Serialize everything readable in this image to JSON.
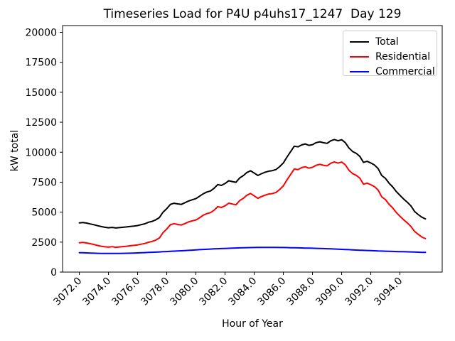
{
  "chart_data": {
    "type": "line",
    "title": "Timeseries Load for P4U p4uhs17_1247  Day 129",
    "xlabel": "Hour of Year",
    "ylabel": "kW total",
    "xlim": [
      3070.85,
      3096.9
    ],
    "ylim": [
      0,
      20563
    ],
    "grid": false,
    "legend_position": "upper right",
    "xticks": {
      "values": [
        3072,
        3074,
        3076,
        3078,
        3080,
        3082,
        3084,
        3086,
        3088,
        3090,
        3092,
        3094
      ],
      "labels": [
        "3072.0",
        "3074.0",
        "3076.0",
        "3078.0",
        "3080.0",
        "3082.0",
        "3084.0",
        "3086.0",
        "3088.0",
        "3090.0",
        "3092.0",
        "3094.0"
      ]
    },
    "yticks": {
      "values": [
        0,
        2500,
        5000,
        7500,
        10000,
        12500,
        15000,
        17500,
        20000
      ],
      "labels": [
        "0",
        "2500",
        "5000",
        "7500",
        "10000",
        "12500",
        "15000",
        "17500",
        "20000"
      ]
    },
    "x": [
      3072.0,
      3072.25,
      3072.5,
      3072.75,
      3073.0,
      3073.25,
      3073.5,
      3073.75,
      3074.0,
      3074.25,
      3074.5,
      3074.75,
      3075.0,
      3075.25,
      3075.5,
      3075.75,
      3076.0,
      3076.25,
      3076.5,
      3076.75,
      3077.0,
      3077.25,
      3077.5,
      3077.75,
      3078.0,
      3078.25,
      3078.5,
      3078.75,
      3079.0,
      3079.25,
      3079.5,
      3079.75,
      3080.0,
      3080.25,
      3080.5,
      3080.75,
      3081.0,
      3081.25,
      3081.5,
      3081.75,
      3082.0,
      3082.25,
      3082.5,
      3082.75,
      3083.0,
      3083.25,
      3083.5,
      3083.75,
      3084.0,
      3084.25,
      3084.5,
      3084.75,
      3085.0,
      3085.25,
      3085.5,
      3085.75,
      3086.0,
      3086.25,
      3086.5,
      3086.75,
      3087.0,
      3087.25,
      3087.5,
      3087.75,
      3088.0,
      3088.25,
      3088.5,
      3088.75,
      3089.0,
      3089.25,
      3089.5,
      3089.75,
      3090.0,
      3090.25,
      3090.5,
      3090.75,
      3091.0,
      3091.25,
      3091.5,
      3091.75,
      3092.0,
      3092.25,
      3092.5,
      3092.75,
      3093.0,
      3093.25,
      3093.5,
      3093.75,
      3094.0,
      3094.25,
      3094.5,
      3094.75,
      3095.0,
      3095.25,
      3095.5,
      3095.75
    ],
    "series": [
      {
        "name": "Total",
        "color": "#000000",
        "values": [
          4100,
          4130,
          4090,
          4020,
          3950,
          3870,
          3800,
          3740,
          3700,
          3730,
          3680,
          3710,
          3740,
          3770,
          3810,
          3840,
          3880,
          3960,
          4030,
          4160,
          4230,
          4360,
          4560,
          5000,
          5300,
          5650,
          5740,
          5690,
          5650,
          5790,
          5930,
          6030,
          6130,
          6330,
          6530,
          6680,
          6770,
          7000,
          7300,
          7230,
          7390,
          7620,
          7550,
          7490,
          7850,
          8050,
          8310,
          8450,
          8260,
          8060,
          8210,
          8330,
          8420,
          8460,
          8560,
          8800,
          9110,
          9600,
          10050,
          10500,
          10450,
          10610,
          10690,
          10570,
          10630,
          10800,
          10870,
          10790,
          10740,
          10950,
          11060,
          10960,
          11040,
          10800,
          10350,
          10060,
          9900,
          9650,
          9150,
          9240,
          9100,
          8930,
          8640,
          8060,
          7820,
          7420,
          7110,
          6720,
          6400,
          6100,
          5830,
          5530,
          5060,
          4800,
          4580,
          4440
        ]
      },
      {
        "name": "Residential",
        "color": "#ff0000",
        "values": [
          2450,
          2470,
          2430,
          2370,
          2300,
          2220,
          2160,
          2110,
          2080,
          2120,
          2070,
          2100,
          2130,
          2160,
          2200,
          2230,
          2270,
          2330,
          2390,
          2490,
          2560,
          2670,
          2850,
          3300,
          3600,
          3950,
          4040,
          3970,
          3930,
          4050,
          4190,
          4270,
          4350,
          4530,
          4740,
          4880,
          4960,
          5170,
          5460,
          5390,
          5530,
          5750,
          5680,
          5610,
          5960,
          6150,
          6410,
          6560,
          6360,
          6150,
          6300,
          6420,
          6510,
          6550,
          6650,
          6890,
          7200,
          7690,
          8150,
          8600,
          8550,
          8710,
          8790,
          8670,
          8740,
          8910,
          8990,
          8910,
          8860,
          9080,
          9190,
          9090,
          9180,
          8950,
          8500,
          8220,
          8070,
          7830,
          7330,
          7420,
          7290,
          7130,
          6850,
          6280,
          6050,
          5660,
          5360,
          4970,
          4660,
          4370,
          4110,
          3810,
          3400,
          3150,
          2930,
          2790
        ]
      },
      {
        "name": "Commercial",
        "color": "#0000ff",
        "values": [
          1620,
          1612,
          1600,
          1588,
          1575,
          1565,
          1558,
          1552,
          1550,
          1550,
          1552,
          1556,
          1562,
          1570,
          1578,
          1588,
          1600,
          1612,
          1625,
          1640,
          1655,
          1668,
          1682,
          1698,
          1715,
          1732,
          1748,
          1762,
          1778,
          1795,
          1812,
          1832,
          1852,
          1870,
          1888,
          1905,
          1920,
          1935,
          1950,
          1962,
          1975,
          1988,
          1998,
          2008,
          2018,
          2028,
          2036,
          2044,
          2050,
          2055,
          2058,
          2060,
          2060,
          2058,
          2055,
          2052,
          2048,
          2042,
          2035,
          2028,
          2020,
          2012,
          2005,
          1998,
          1990,
          1980,
          1970,
          1960,
          1950,
          1938,
          1925,
          1912,
          1898,
          1885,
          1870,
          1855,
          1840,
          1825,
          1812,
          1800,
          1788,
          1775,
          1762,
          1752,
          1742,
          1732,
          1722,
          1714,
          1706,
          1698,
          1690,
          1682,
          1672,
          1660,
          1650,
          1640
        ]
      }
    ],
    "colors": {
      "background": "#ffffff",
      "axes": "#000000",
      "tick_text": "#000000",
      "legend_border": "#cccccc"
    }
  }
}
